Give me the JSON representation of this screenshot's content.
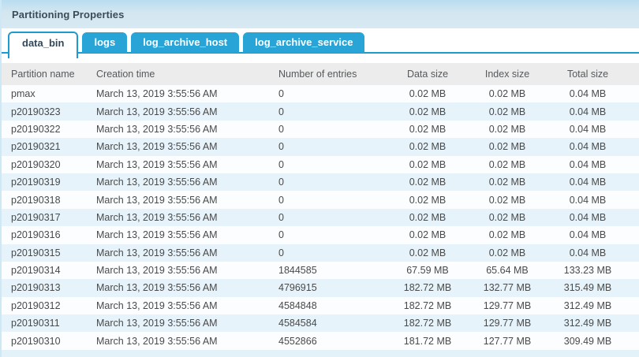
{
  "panel": {
    "title": "Partitioning Properties"
  },
  "tabs": [
    {
      "label": "data_bin",
      "active": true
    },
    {
      "label": "logs",
      "active": false
    },
    {
      "label": "log_archive_host",
      "active": false
    },
    {
      "label": "log_archive_service",
      "active": false
    }
  ],
  "table": {
    "columns": [
      "Partition name",
      "Creation time",
      "Number of entries",
      "Data size",
      "Index size",
      "Total size"
    ],
    "rows": [
      [
        "pmax",
        "March 13, 2019 3:55:56 AM",
        "0",
        "0.02 MB",
        "0.02 MB",
        "0.04 MB"
      ],
      [
        "p20190323",
        "March 13, 2019 3:55:56 AM",
        "0",
        "0.02 MB",
        "0.02 MB",
        "0.04 MB"
      ],
      [
        "p20190322",
        "March 13, 2019 3:55:56 AM",
        "0",
        "0.02 MB",
        "0.02 MB",
        "0.04 MB"
      ],
      [
        "p20190321",
        "March 13, 2019 3:55:56 AM",
        "0",
        "0.02 MB",
        "0.02 MB",
        "0.04 MB"
      ],
      [
        "p20190320",
        "March 13, 2019 3:55:56 AM",
        "0",
        "0.02 MB",
        "0.02 MB",
        "0.04 MB"
      ],
      [
        "p20190319",
        "March 13, 2019 3:55:56 AM",
        "0",
        "0.02 MB",
        "0.02 MB",
        "0.04 MB"
      ],
      [
        "p20190318",
        "March 13, 2019 3:55:56 AM",
        "0",
        "0.02 MB",
        "0.02 MB",
        "0.04 MB"
      ],
      [
        "p20190317",
        "March 13, 2019 3:55:56 AM",
        "0",
        "0.02 MB",
        "0.02 MB",
        "0.04 MB"
      ],
      [
        "p20190316",
        "March 13, 2019 3:55:56 AM",
        "0",
        "0.02 MB",
        "0.02 MB",
        "0.04 MB"
      ],
      [
        "p20190315",
        "March 13, 2019 3:55:56 AM",
        "0",
        "0.02 MB",
        "0.02 MB",
        "0.04 MB"
      ],
      [
        "p20190314",
        "March 13, 2019 3:55:56 AM",
        "1844585",
        "67.59 MB",
        "65.64 MB",
        "133.23 MB"
      ],
      [
        "p20190313",
        "March 13, 2019 3:55:56 AM",
        "4796915",
        "182.72 MB",
        "132.77 MB",
        "315.49 MB"
      ],
      [
        "p20190312",
        "March 13, 2019 3:55:56 AM",
        "4584848",
        "182.72 MB",
        "129.77 MB",
        "312.49 MB"
      ],
      [
        "p20190311",
        "March 13, 2019 3:55:56 AM",
        "4584584",
        "182.72 MB",
        "129.77 MB",
        "312.49 MB"
      ],
      [
        "p20190310",
        "March 13, 2019 3:55:56 AM",
        "4552866",
        "181.72 MB",
        "127.77 MB",
        "309.49 MB"
      ]
    ]
  },
  "colors": {
    "tab_blue": "#29a4d6",
    "tab_border_blue": "#1b9cd0",
    "title_bar_bg": "#d4e7f1",
    "header_row_bg": "#ececec",
    "row_alt_bg": "#e6f3fa",
    "row_bg": "#fbfdfe",
    "active_tab_text": "#33475a",
    "bottom_strip_bg": "#e3f1f9"
  }
}
